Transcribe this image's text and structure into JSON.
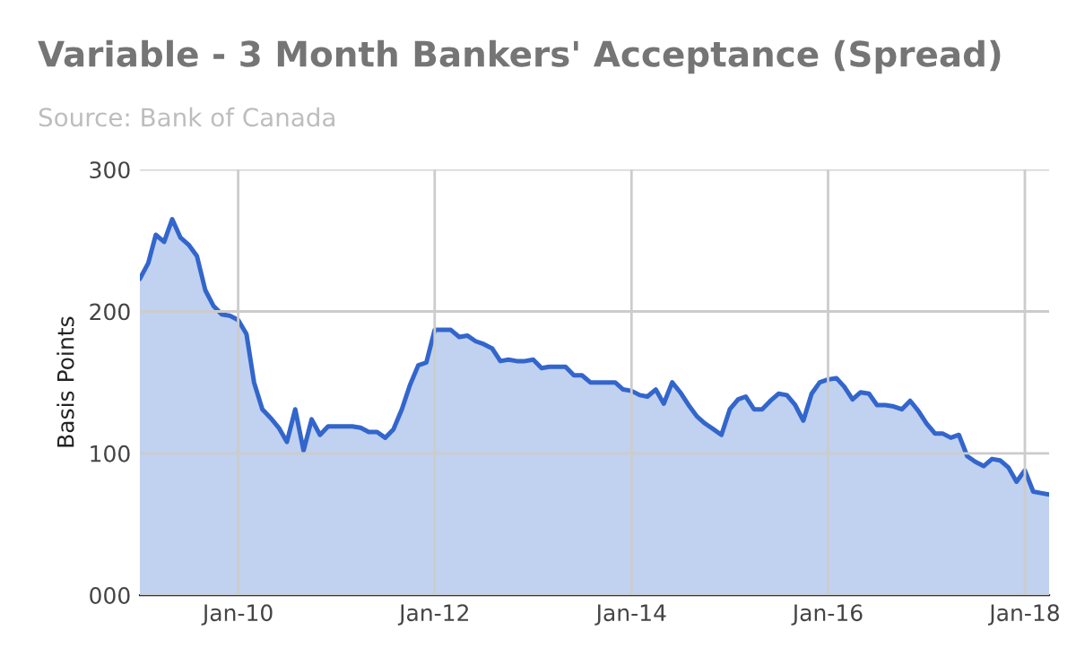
{
  "chart_data": {
    "type": "area",
    "title": "Variable - 3 Month Bankers' Acceptance (Spread)",
    "subtitle": "Source: Bank of Canada",
    "ylabel": "Basis Points",
    "x": [
      "2009-01",
      "2009-02",
      "2009-03",
      "2009-04",
      "2009-05",
      "2009-06",
      "2009-07",
      "2009-08",
      "2009-09",
      "2009-10",
      "2009-11",
      "2009-12",
      "2010-01",
      "2010-02",
      "2010-03",
      "2010-04",
      "2010-05",
      "2010-06",
      "2010-07",
      "2010-08",
      "2010-09",
      "2010-10",
      "2010-11",
      "2010-12",
      "2011-01",
      "2011-02",
      "2011-03",
      "2011-04",
      "2011-05",
      "2011-06",
      "2011-07",
      "2011-08",
      "2011-09",
      "2011-10",
      "2011-11",
      "2011-12",
      "2012-01",
      "2012-02",
      "2012-03",
      "2012-04",
      "2012-05",
      "2012-06",
      "2012-07",
      "2012-08",
      "2012-09",
      "2012-10",
      "2012-11",
      "2012-12",
      "2013-01",
      "2013-02",
      "2013-03",
      "2013-04",
      "2013-05",
      "2013-06",
      "2013-07",
      "2013-08",
      "2013-09",
      "2013-10",
      "2013-11",
      "2013-12",
      "2014-01",
      "2014-02",
      "2014-03",
      "2014-04",
      "2014-05",
      "2014-06",
      "2014-07",
      "2014-08",
      "2014-09",
      "2014-10",
      "2014-11",
      "2014-12",
      "2015-01",
      "2015-02",
      "2015-03",
      "2015-04",
      "2015-05",
      "2015-06",
      "2015-07",
      "2015-08",
      "2015-09",
      "2015-10",
      "2015-11",
      "2015-12",
      "2016-01",
      "2016-02",
      "2016-03",
      "2016-04",
      "2016-05",
      "2016-06",
      "2016-07",
      "2016-08",
      "2016-09",
      "2016-10",
      "2016-11",
      "2016-12",
      "2017-01",
      "2017-02",
      "2017-03",
      "2017-04",
      "2017-05",
      "2017-06",
      "2017-07",
      "2017-08",
      "2017-09",
      "2017-10",
      "2017-11",
      "2017-12",
      "2018-01",
      "2018-02",
      "2018-03",
      "2018-04"
    ],
    "series": [
      {
        "color": "#3366cc",
        "values": [
          223,
          234,
          254,
          249,
          265,
          252,
          247,
          239,
          215,
          204,
          198,
          197,
          194,
          184,
          150,
          131,
          125,
          118,
          108,
          131,
          102,
          124,
          113,
          119,
          119,
          119,
          119,
          118,
          115,
          115,
          111,
          117,
          131,
          148,
          162,
          164,
          187,
          187,
          187,
          182,
          183,
          179,
          177,
          174,
          165,
          166,
          165,
          165,
          166,
          160,
          161,
          161,
          161,
          155,
          155,
          150,
          150,
          150,
          150,
          145,
          144,
          141,
          140,
          145,
          135,
          150,
          143,
          134,
          126,
          121,
          117,
          113,
          131,
          138,
          140,
          131,
          131,
          137,
          142,
          141,
          134,
          123,
          142,
          150,
          152,
          153,
          147,
          138,
          143,
          142,
          134,
          134,
          133,
          131,
          137,
          130,
          121,
          114,
          114,
          111,
          113,
          98,
          94,
          91,
          96,
          95,
          90,
          80,
          88,
          73,
          72,
          71
        ]
      }
    ],
    "xlim": [
      "2009-01",
      "2018-04"
    ],
    "xticks": [
      {
        "value": "2010-01",
        "label": "Jan-10"
      },
      {
        "value": "2012-01",
        "label": "Jan-12"
      },
      {
        "value": "2014-01",
        "label": "Jan-14"
      },
      {
        "value": "2016-01",
        "label": "Jan-16"
      },
      {
        "value": "2018-01",
        "label": "Jan-18"
      }
    ],
    "ylim": [
      0,
      300
    ],
    "yticks": [
      {
        "value": 0,
        "label": "000"
      },
      100,
      200,
      300
    ],
    "grid": true,
    "legend": false
  }
}
